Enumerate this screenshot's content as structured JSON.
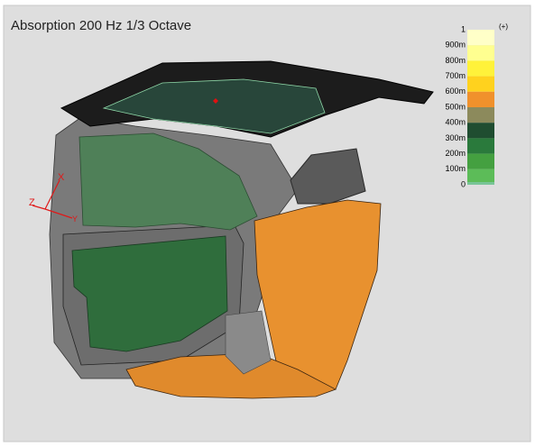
{
  "title": "Absorption 200 Hz 1/3 Octave",
  "legend": {
    "overflow_label": "(+)",
    "labels": [
      "1",
      "900m",
      "800m",
      "700m",
      "600m",
      "500m",
      "400m",
      "300m",
      "200m",
      "100m",
      "0"
    ],
    "colors": [
      "#ffffc8",
      "#ffff90",
      "#fff23a",
      "#ffd21e",
      "#f0912c",
      "#8c8a5c",
      "#1f4d30",
      "#2a7a3c",
      "#44a040",
      "#5cbc58",
      "#78c496"
    ]
  },
  "axes": {
    "x": "X",
    "y": "Y",
    "z": "Z"
  }
}
